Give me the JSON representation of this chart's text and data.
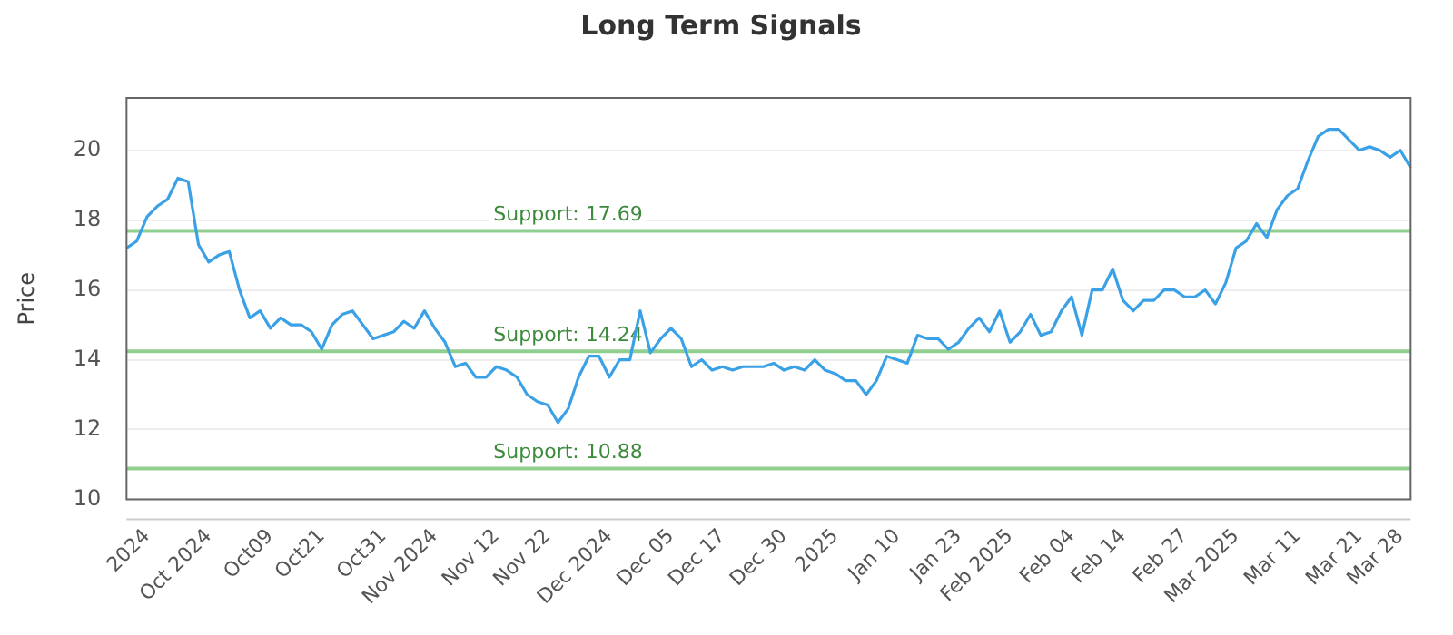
{
  "chart_data": {
    "type": "line",
    "title": "Long Term Signals",
    "ylabel": "Price",
    "categories": [
      null,
      null,
      "2024",
      null,
      null,
      null,
      null,
      null,
      "Oct 2024",
      null,
      null,
      null,
      null,
      null,
      "Oct09",
      null,
      null,
      null,
      null,
      "Oct21",
      null,
      null,
      null,
      null,
      null,
      "Oct31",
      null,
      null,
      null,
      null,
      "Nov 2024",
      null,
      null,
      null,
      null,
      null,
      "Nov 12",
      null,
      null,
      null,
      null,
      "Nov 22",
      null,
      null,
      null,
      null,
      null,
      "Dec 2024",
      null,
      null,
      null,
      null,
      null,
      "Dec 05",
      null,
      null,
      null,
      null,
      "Dec 17",
      null,
      null,
      null,
      null,
      null,
      "Dec 30",
      null,
      null,
      null,
      null,
      "2025",
      null,
      null,
      null,
      null,
      null,
      "Jan 10",
      null,
      null,
      null,
      null,
      null,
      "Jan 23",
      null,
      null,
      null,
      null,
      "Feb 2025",
      null,
      null,
      null,
      null,
      null,
      "Feb 04",
      null,
      null,
      null,
      null,
      "Feb 14",
      null,
      null,
      null,
      null,
      null,
      "Feb 27",
      null,
      null,
      null,
      null,
      "Mar 2025",
      null,
      null,
      null,
      null,
      null,
      "Mar 11",
      null,
      null,
      null,
      null,
      null,
      "Mar 21",
      null,
      null,
      null,
      "Mar 28",
      null
    ],
    "series": [
      {
        "color": "#3ba1e6",
        "values": [
          17.2,
          17.4,
          18.1,
          18.4,
          18.6,
          19.2,
          19.1,
          17.3,
          16.8,
          17.0,
          17.1,
          16.0,
          15.2,
          15.4,
          14.9,
          15.2,
          15.0,
          15.0,
          14.8,
          14.3,
          15.0,
          15.3,
          15.4,
          15.0,
          14.6,
          14.7,
          14.8,
          15.1,
          14.9,
          15.4,
          14.9,
          14.5,
          13.8,
          13.9,
          13.5,
          13.5,
          13.8,
          13.7,
          13.5,
          13.0,
          12.8,
          12.7,
          12.2,
          12.6,
          13.5,
          14.1,
          14.1,
          13.5,
          14.0,
          14.0,
          15.4,
          14.2,
          14.6,
          14.9,
          14.6,
          13.8,
          14.0,
          13.7,
          13.8,
          13.7,
          13.8,
          13.8,
          13.8,
          13.9,
          13.7,
          13.8,
          13.7,
          14.0,
          13.7,
          13.6,
          13.4,
          13.4,
          13.0,
          13.4,
          14.1,
          14.0,
          13.9,
          14.7,
          14.6,
          14.6,
          14.3,
          14.5,
          14.9,
          15.2,
          14.8,
          15.4,
          14.5,
          14.8,
          15.3,
          14.7,
          14.8,
          15.4,
          15.8,
          14.7,
          16.0,
          16.0,
          16.6,
          15.7,
          15.4,
          15.7,
          15.7,
          16.0,
          16.0,
          15.8,
          15.8,
          16.0,
          15.6,
          16.2,
          17.2,
          17.4,
          17.9,
          17.5,
          18.3,
          18.7,
          18.9,
          19.7,
          20.4,
          20.6,
          20.6,
          20.3,
          20.0,
          20.1,
          20.0,
          19.8,
          20.0,
          19.5
        ]
      }
    ],
    "ylim": [
      10,
      21.5
    ],
    "yticks": [
      10,
      12,
      14,
      16,
      18,
      20
    ],
    "ref_lines": [
      {
        "axis": "y",
        "value": 17.69,
        "label": "Support: 17.69",
        "color": "#90cf90"
      },
      {
        "axis": "y",
        "value": 14.24,
        "label": "Support: 14.24",
        "color": "#90cf90"
      },
      {
        "axis": "y",
        "value": 10.88,
        "label": "Support: 10.88",
        "color": "#90cf90"
      }
    ],
    "grid": "y",
    "legend": false,
    "marker": "none",
    "line_style": "solid"
  }
}
